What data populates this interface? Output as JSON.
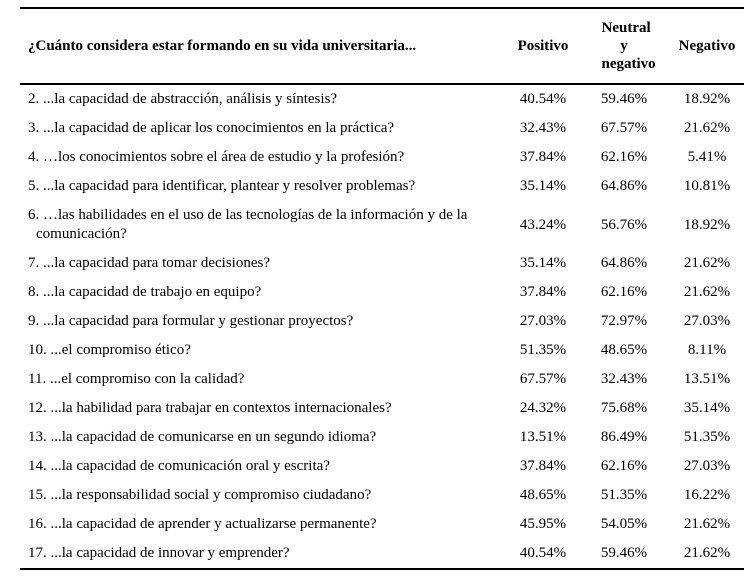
{
  "table": {
    "header": {
      "question": "¿Cuánto considera estar formando en su vida universitaria...",
      "columns": [
        "Positivo",
        "Neutral y negativo",
        "Negativo"
      ]
    },
    "rows": [
      {
        "question": "2. ...la capacidad de abstracción, análisis y síntesis?",
        "positivo": "40.54%",
        "neutral": "59.46%",
        "negativo": "18.92%"
      },
      {
        "question": "3. ...la capacidad de aplicar los conocimientos en la práctica?",
        "positivo": "32.43%",
        "neutral": "67.57%",
        "negativo": "21.62%"
      },
      {
        "question": "4. …los conocimientos sobre el área de estudio y la profesión?",
        "positivo": "37.84%",
        "neutral": "62.16%",
        "negativo": "5.41%"
      },
      {
        "question": "5. ...la capacidad para identificar, plantear y resolver problemas?",
        "positivo": "35.14%",
        "neutral": "64.86%",
        "negativo": "10.81%"
      },
      {
        "question": "6. …las habilidades en el uso de las tecnologías de la información y de la comunicación?",
        "positivo": "43.24%",
        "neutral": "56.76%",
        "negativo": "18.92%"
      },
      {
        "question": "7. ...la capacidad para tomar decisiones?",
        "positivo": "35.14%",
        "neutral": "64.86%",
        "negativo": "21.62%"
      },
      {
        "question": "8. ...la capacidad de trabajo en equipo?",
        "positivo": "37.84%",
        "neutral": "62.16%",
        "negativo": "21.62%"
      },
      {
        "question": "9. ...la capacidad para formular y gestionar proyectos?",
        "positivo": "27.03%",
        "neutral": "72.97%",
        "negativo": "27.03%"
      },
      {
        "question": "10. ...el compromiso ético?",
        "positivo": "51.35%",
        "neutral": "48.65%",
        "negativo": "8.11%"
      },
      {
        "question": "11. ...el compromiso con la calidad?",
        "positivo": "67.57%",
        "neutral": "32.43%",
        "negativo": "13.51%"
      },
      {
        "question": "12. ...la habilidad para trabajar en contextos internacionales?",
        "positivo": "24.32%",
        "neutral": "75.68%",
        "negativo": "35.14%"
      },
      {
        "question": "13. ...la capacidad de comunicarse en un segundo idioma?",
        "positivo": "13.51%",
        "neutral": "86.49%",
        "negativo": "51.35%"
      },
      {
        "question": "14. ...la capacidad de comunicación oral y escrita?",
        "positivo": "37.84%",
        "neutral": "62.16%",
        "negativo": "27.03%"
      },
      {
        "question": "15. ...la responsabilidad social y compromiso ciudadano?",
        "positivo": "48.65%",
        "neutral": "51.35%",
        "negativo": "16.22%"
      },
      {
        "question": "16. ...la capacidad de aprender y actualizarse permanente?",
        "positivo": "45.95%",
        "neutral": "54.05%",
        "negativo": "21.62%"
      },
      {
        "question": "17. ...la capacidad de innovar y emprender?",
        "positivo": "40.54%",
        "neutral": "59.46%",
        "negativo": "21.62%"
      }
    ]
  }
}
